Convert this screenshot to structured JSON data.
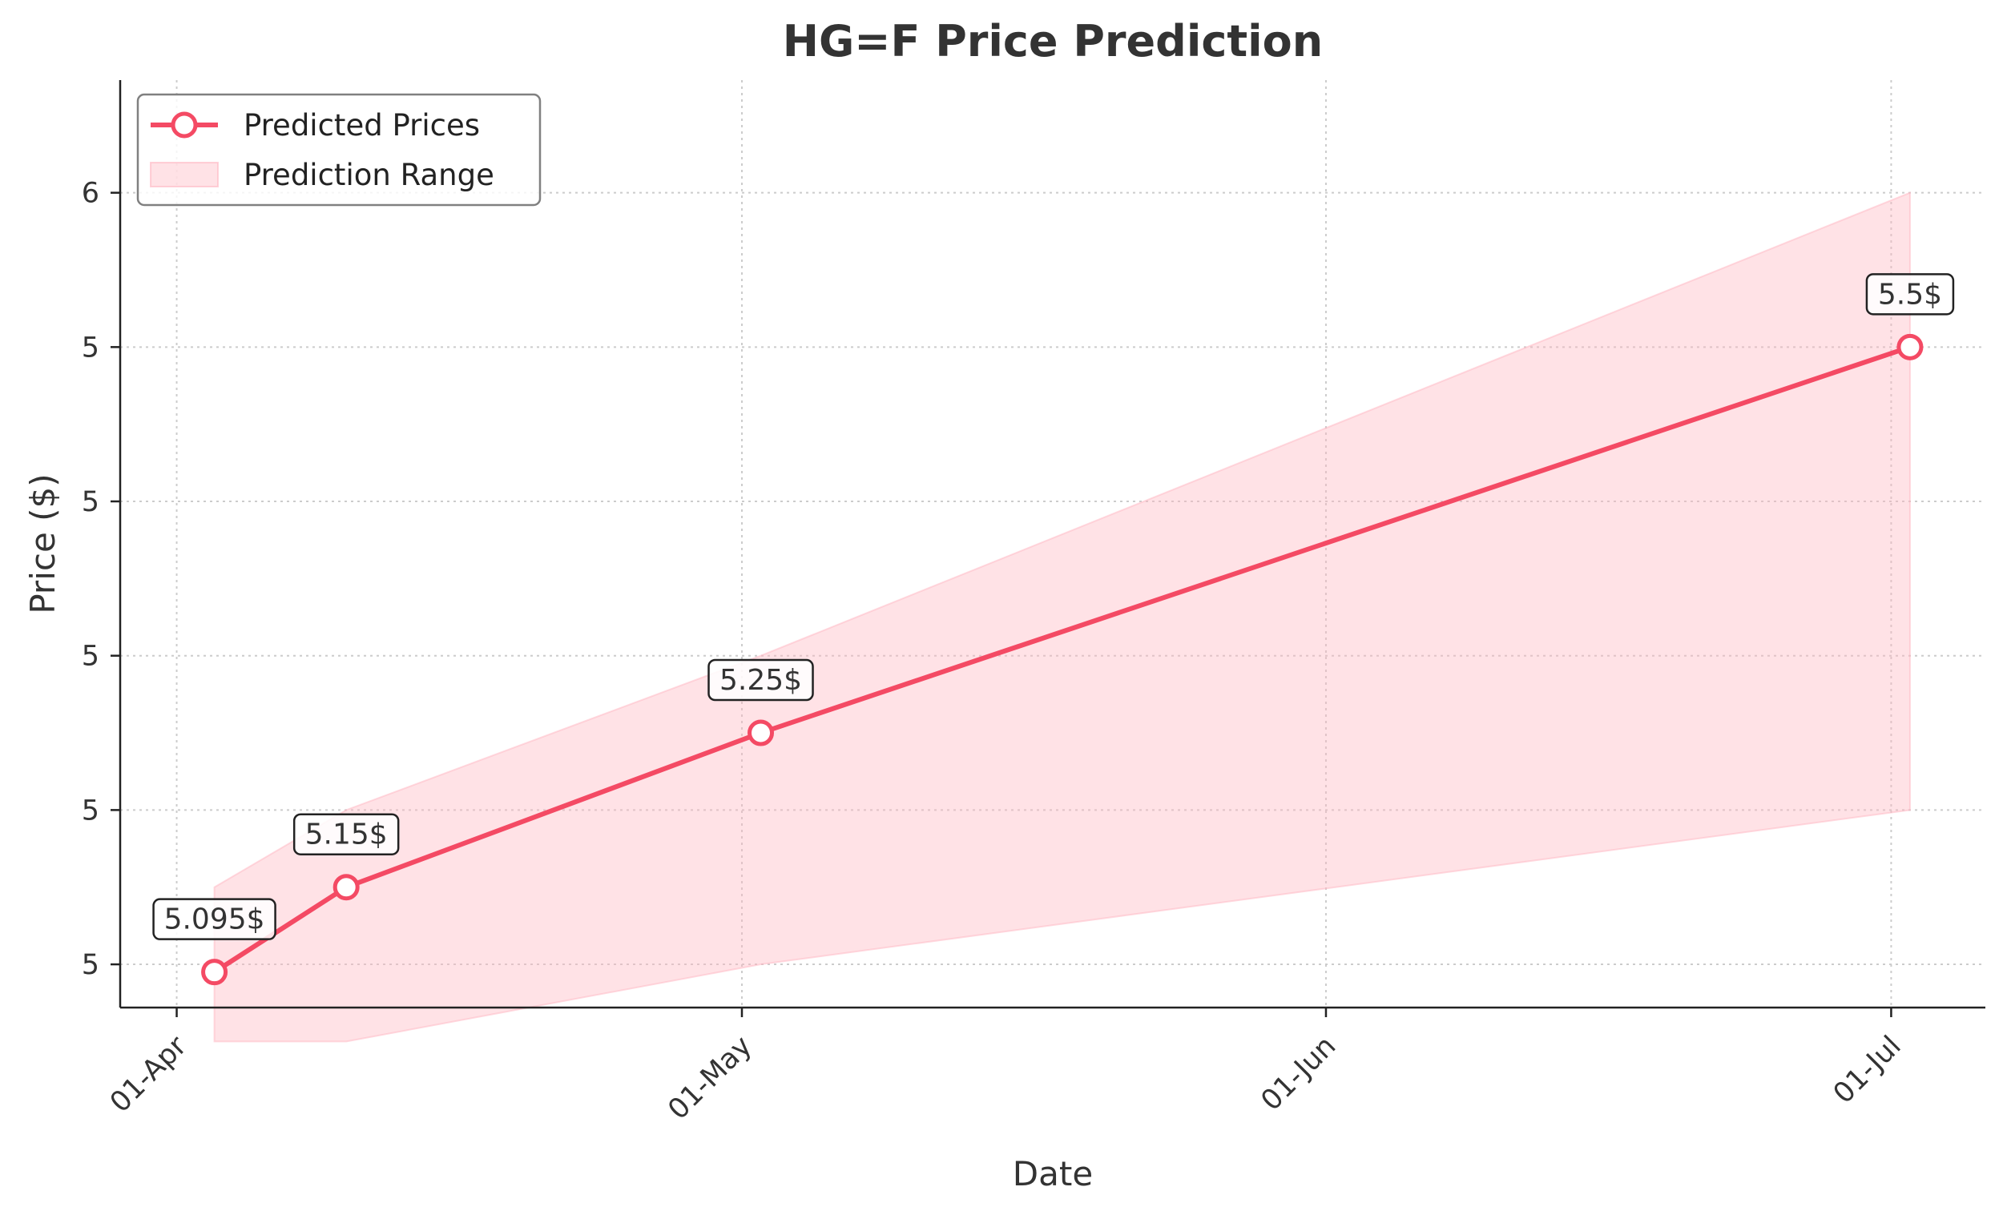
{
  "chart_data": {
    "type": "line",
    "title": "HG=F Price Prediction",
    "xlabel": "Date",
    "ylabel": "Price ($)",
    "x_tick_dates": [
      "2025-04-01",
      "2025-05-01",
      "2025-06-01",
      "2025-07-01"
    ],
    "x_tick_labels": [
      "01-Apr",
      "01-May",
      "01-Jun",
      "01-Jul"
    ],
    "y_ticks": [
      5.1,
      5.2,
      5.3,
      5.4,
      5.5,
      5.6
    ],
    "y_tick_labels": [
      "5",
      "5",
      "5",
      "5",
      "5",
      "6"
    ],
    "xlim": [
      "2025-03-29",
      "2025-07-06"
    ],
    "ylim": [
      5.072,
      5.673
    ],
    "grid": true,
    "legend_position": "top-left",
    "colors": {
      "line": "#f44a64",
      "band": "#ffb6c1",
      "text": "#333333",
      "grid": "#cccccc"
    },
    "series": [
      {
        "name": "Predicted Prices",
        "x": [
          "2025-04-03",
          "2025-04-10",
          "2025-05-02",
          "2025-07-02"
        ],
        "y": [
          5.095,
          5.15,
          5.25,
          5.5
        ],
        "labels": [
          "5.095$",
          "5.15$",
          "5.25$",
          "5.5$"
        ]
      }
    ],
    "range": {
      "name": "Prediction Range",
      "x": [
        "2025-04-03",
        "2025-04-10",
        "2025-05-02",
        "2025-07-02"
      ],
      "lower": [
        5.05,
        5.05,
        5.1,
        5.2
      ],
      "upper": [
        5.15,
        5.2,
        5.3,
        5.6
      ]
    }
  }
}
